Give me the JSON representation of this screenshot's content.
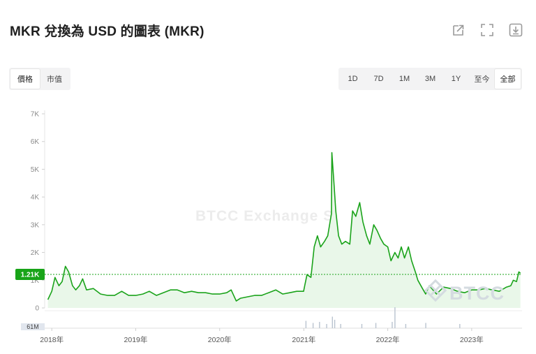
{
  "header": {
    "title": "MKR 兌換為 USD 的圖表 (MKR)",
    "icons": [
      "share-icon",
      "fullscreen-icon",
      "download-icon"
    ]
  },
  "metric_tabs": [
    {
      "label": "價格",
      "active": true
    },
    {
      "label": "市值",
      "active": false
    }
  ],
  "range_tabs": [
    {
      "label": "1D",
      "active": false
    },
    {
      "label": "7D",
      "active": false
    },
    {
      "label": "1M",
      "active": false
    },
    {
      "label": "3M",
      "active": false
    },
    {
      "label": "1Y",
      "active": false
    },
    {
      "label": "至今",
      "active": false
    },
    {
      "label": "全部",
      "active": true
    }
  ],
  "colors": {
    "line": "#1aa31a",
    "fill": "#e9f7e9",
    "price_label_bg": "#18a418",
    "accent_dashed": "#1aa31a"
  },
  "chart_data": {
    "type": "area",
    "series": [
      {
        "x": [
          "2017-12-15",
          "2018-01-01",
          "2018-01-15",
          "2018-02-01",
          "2018-02-15",
          "2018-03-01",
          "2018-03-15",
          "2018-04-01",
          "2018-04-15",
          "2018-05-01",
          "2018-05-15",
          "2018-06-01",
          "2018-07-01",
          "2018-08-01",
          "2018-09-01",
          "2018-10-01",
          "2018-11-01",
          "2018-12-01",
          "2019-01-01",
          "2019-02-01",
          "2019-03-01",
          "2019-04-01",
          "2019-05-01",
          "2019-06-01",
          "2019-07-01",
          "2019-08-01",
          "2019-09-01",
          "2019-10-01",
          "2019-11-01",
          "2019-12-01",
          "2020-01-01",
          "2020-02-01",
          "2020-02-20",
          "2020-03-13",
          "2020-04-01",
          "2020-05-01",
          "2020-06-01",
          "2020-07-01",
          "2020-08-01",
          "2020-09-01",
          "2020-10-01",
          "2020-11-01",
          "2020-12-01",
          "2020-12-31",
          "2021-01-05",
          "2021-01-15",
          "2021-02-01",
          "2021-02-15",
          "2021-03-01",
          "2021-03-15",
          "2021-04-01",
          "2021-04-15",
          "2021-05-01",
          "2021-05-03",
          "2021-05-12",
          "2021-05-20",
          "2021-06-01",
          "2021-06-15",
          "2021-07-01",
          "2021-07-20",
          "2021-08-01",
          "2021-08-15",
          "2021-09-01",
          "2021-09-15",
          "2021-10-01",
          "2021-10-15",
          "2021-11-01",
          "2021-11-15",
          "2021-12-01",
          "2021-12-15",
          "2022-01-01",
          "2022-01-15",
          "2022-02-01",
          "2022-02-15",
          "2022-03-01",
          "2022-03-15",
          "2022-04-01",
          "2022-04-15",
          "2022-05-01",
          "2022-05-12",
          "2022-06-01",
          "2022-06-15",
          "2022-07-01",
          "2022-08-01",
          "2022-09-01",
          "2022-10-01",
          "2022-11-01",
          "2022-12-01",
          "2023-01-01",
          "2023-02-01",
          "2023-03-01",
          "2023-04-01",
          "2023-05-01",
          "2023-06-01",
          "2023-06-20",
          "2023-07-01",
          "2023-07-15",
          "2023-07-25",
          "2023-08-01"
        ],
        "y": [
          300,
          600,
          1100,
          800,
          950,
          1500,
          1300,
          800,
          650,
          800,
          1050,
          650,
          700,
          500,
          450,
          450,
          600,
          450,
          450,
          500,
          600,
          450,
          550,
          650,
          650,
          550,
          600,
          550,
          550,
          500,
          500,
          550,
          650,
          250,
          350,
          400,
          450,
          450,
          550,
          650,
          500,
          550,
          600,
          600,
          800,
          1200,
          1100,
          2200,
          2600,
          2200,
          2400,
          2600,
          3400,
          5600,
          4500,
          3500,
          2600,
          2300,
          2400,
          2300,
          3500,
          3300,
          3800,
          3100,
          2600,
          2300,
          3000,
          2800,
          2500,
          2300,
          2200,
          1700,
          2000,
          1800,
          2200,
          1800,
          2200,
          1700,
          1300,
          1000,
          700,
          500,
          800,
          500,
          750,
          700,
          600,
          550,
          650,
          650,
          700,
          650,
          600,
          750,
          800,
          1000,
          950,
          1300,
          1250
        ]
      }
    ],
    "current_price_label": "1.21K",
    "current_price": 1210,
    "yticks": [
      "0",
      "1K",
      "2K",
      "3K",
      "4K",
      "5K",
      "6K",
      "7K"
    ],
    "ylim": [
      0,
      7000
    ],
    "xticks": [
      "2018年",
      "2019年",
      "2020年",
      "2021年",
      "2022年",
      "2023年"
    ],
    "xlim": [
      "2017-12-01",
      "2023-08-08"
    ],
    "volume_axis_label": "61M",
    "volume": [
      {
        "x": "2021-01-10",
        "v": 0.35
      },
      {
        "x": "2021-02-10",
        "v": 0.25
      },
      {
        "x": "2021-03-10",
        "v": 0.3
      },
      {
        "x": "2021-04-10",
        "v": 0.2
      },
      {
        "x": "2021-05-05",
        "v": 0.55
      },
      {
        "x": "2021-05-15",
        "v": 0.4
      },
      {
        "x": "2021-06-10",
        "v": 0.2
      },
      {
        "x": "2021-09-10",
        "v": 0.2
      },
      {
        "x": "2021-11-10",
        "v": 0.25
      },
      {
        "x": "2022-01-20",
        "v": 0.3
      },
      {
        "x": "2022-02-01",
        "v": 1.0
      },
      {
        "x": "2022-03-20",
        "v": 0.2
      },
      {
        "x": "2022-06-15",
        "v": 0.25
      },
      {
        "x": "2022-11-10",
        "v": 0.2
      }
    ],
    "watermark": "BTCC Exchange S",
    "brand_mark": "BTCC",
    "grid": false,
    "legend": "none"
  }
}
